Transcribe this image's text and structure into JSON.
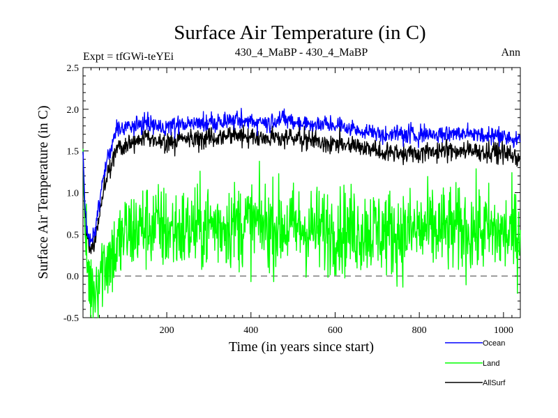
{
  "chart_data": {
    "type": "line",
    "title": "Surface Air Temperature (in C)",
    "subtitle_left": "Expt = tfGWi-teYEi",
    "subtitle_center": "430_4_MaBP - 430_4_MaBP",
    "subtitle_right": "Ann",
    "xlabel": "Time (in years since start)",
    "ylabel": "Surface Air Temperature (in C)",
    "xlim": [
      1,
      1040
    ],
    "ylim": [
      -0.5,
      2.5
    ],
    "x_ticks": [
      200,
      400,
      600,
      800,
      1000
    ],
    "x_tick_labels": [
      "200",
      "400",
      "600",
      "800",
      "1000"
    ],
    "y_ticks": [
      -0.5,
      0.0,
      0.5,
      1.0,
      1.5,
      2.0,
      2.5
    ],
    "y_tick_labels": [
      "-0.5",
      "0.0",
      "0.5",
      "1.0",
      "1.5",
      "2.0",
      "2.5"
    ],
    "reference_line": 0.0,
    "legend_position": "bottom-right",
    "series": [
      {
        "name": "Ocean",
        "color": "#0000ff",
        "x": [
          1,
          5,
          10,
          15,
          20,
          25,
          30,
          40,
          50,
          60,
          70,
          80,
          90,
          100,
          125,
          150,
          175,
          200,
          250,
          300,
          350,
          400,
          450,
          475,
          500,
          550,
          600,
          650,
          700,
          750,
          800,
          850,
          900,
          950,
          1000,
          1040
        ],
        "values": [
          1.5,
          0.9,
          0.55,
          0.45,
          0.4,
          0.45,
          0.55,
          0.9,
          1.2,
          1.4,
          1.55,
          1.75,
          1.8,
          1.78,
          1.8,
          1.82,
          1.8,
          1.8,
          1.82,
          1.85,
          1.86,
          1.86,
          1.84,
          1.9,
          1.85,
          1.82,
          1.8,
          1.75,
          1.7,
          1.7,
          1.7,
          1.7,
          1.72,
          1.7,
          1.68,
          1.62
        ]
      },
      {
        "name": "Land",
        "color": "#00ff00",
        "x": [
          1,
          5,
          10,
          15,
          20,
          25,
          30,
          40,
          50,
          60,
          70,
          80,
          90,
          100,
          125,
          150,
          175,
          200,
          250,
          300,
          350,
          400,
          450,
          500,
          550,
          600,
          650,
          700,
          750,
          800,
          850,
          900,
          950,
          1000,
          1040
        ],
        "values": [
          1.5,
          0.6,
          0.2,
          0.0,
          -0.15,
          -0.2,
          -0.1,
          0.05,
          0.15,
          0.2,
          0.25,
          0.3,
          0.4,
          0.5,
          0.55,
          0.6,
          0.6,
          0.55,
          0.55,
          0.6,
          0.62,
          0.62,
          0.6,
          0.58,
          0.55,
          0.55,
          0.55,
          0.55,
          0.5,
          0.55,
          0.55,
          0.55,
          0.55,
          0.5,
          0.5
        ]
      },
      {
        "name": "AllSurf",
        "color": "#000000",
        "x": [
          1,
          5,
          10,
          15,
          20,
          25,
          30,
          40,
          50,
          60,
          70,
          80,
          90,
          100,
          125,
          150,
          175,
          200,
          250,
          300,
          350,
          400,
          450,
          500,
          550,
          600,
          650,
          700,
          750,
          800,
          850,
          900,
          950,
          1000,
          1040
        ],
        "values": [
          1.5,
          0.85,
          0.5,
          0.38,
          0.33,
          0.37,
          0.45,
          0.75,
          1.05,
          1.22,
          1.35,
          1.52,
          1.58,
          1.55,
          1.62,
          1.65,
          1.62,
          1.62,
          1.64,
          1.66,
          1.68,
          1.68,
          1.66,
          1.66,
          1.62,
          1.58,
          1.55,
          1.5,
          1.48,
          1.48,
          1.5,
          1.5,
          1.5,
          1.48,
          1.42
        ]
      }
    ]
  }
}
